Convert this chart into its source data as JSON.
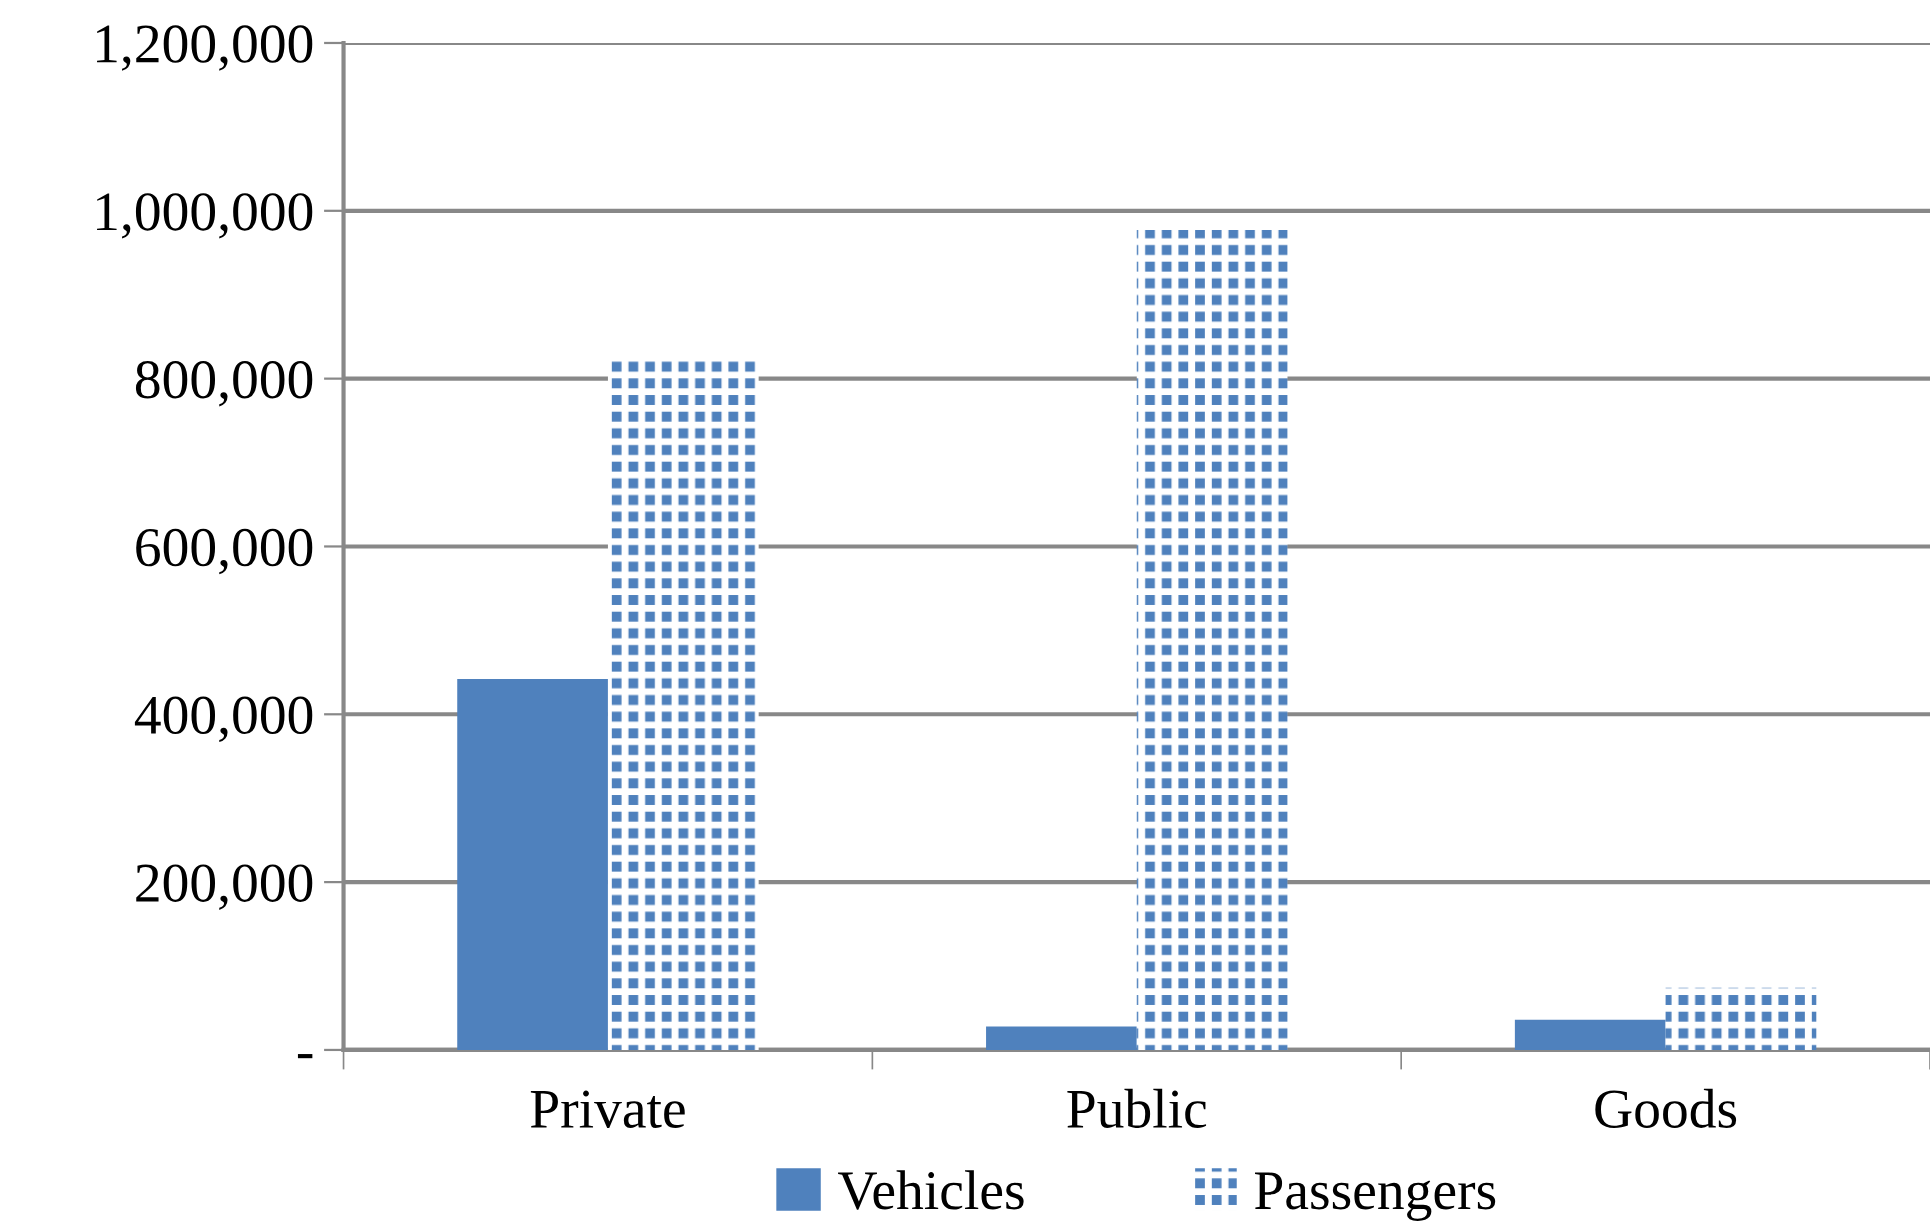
{
  "chart_data": {
    "type": "bar",
    "categories": [
      "Private",
      "Public",
      "Goods"
    ],
    "series": [
      {
        "name": "Vehicles",
        "color": "#4f81bd",
        "values": [
          442000,
          28000,
          36000
        ]
      },
      {
        "name": "Passengers",
        "color": "#4f81bd",
        "values": [
          827000,
          977000,
          74000
        ]
      }
    ],
    "ylim": [
      0,
      1200000
    ],
    "yticks": [
      {
        "value": 0,
        "label": "-"
      },
      {
        "value": 200000,
        "label": "200,000"
      },
      {
        "value": 400000,
        "label": "400,000"
      },
      {
        "value": 600000,
        "label": "600,000"
      },
      {
        "value": 800000,
        "label": "800,000"
      },
      {
        "value": 1000000,
        "label": "1,000,000"
      },
      {
        "value": 1200000,
        "label": "1,200,000"
      }
    ],
    "grid": "y",
    "legend": "bottom"
  }
}
